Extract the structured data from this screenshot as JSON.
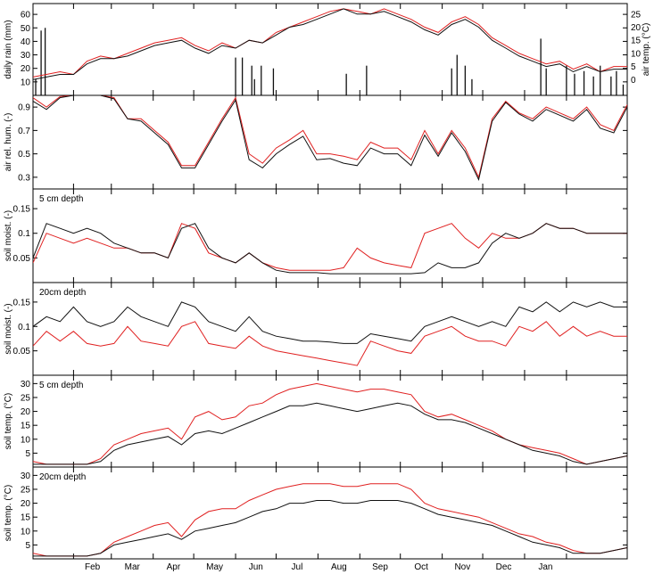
{
  "colors": {
    "series_a": "#e02020",
    "series_b": "#111111",
    "axis": "#000000"
  },
  "months": [
    "Feb",
    "Mar",
    "Apr",
    "May",
    "Jun",
    "Jul",
    "Aug",
    "Sep",
    "Oct",
    "Nov",
    "Dec",
    "Jan"
  ],
  "chart_data": [
    {
      "type": "line",
      "panel": "rain-temp",
      "ylabel": "daily rain (mm)",
      "ylabel_right": "air temp. (°C)",
      "annotation": "",
      "ylim": [
        0,
        68
      ],
      "yticks": [
        10,
        20,
        30,
        40,
        50,
        60
      ],
      "ylim_right": [
        -6,
        29
      ],
      "yticks_right": [
        0,
        5,
        10,
        15,
        20,
        25
      ],
      "rain_bars": [
        [
          2,
          12
        ],
        [
          6,
          48
        ],
        [
          9,
          50
        ],
        [
          150,
          28
        ],
        [
          155,
          28
        ],
        [
          162,
          22
        ],
        [
          164,
          12
        ],
        [
          169,
          22
        ],
        [
          178,
          20
        ],
        [
          232,
          16
        ],
        [
          247,
          22
        ],
        [
          310,
          20
        ],
        [
          314,
          30
        ],
        [
          320,
          22
        ],
        [
          325,
          12
        ],
        [
          376,
          42
        ],
        [
          380,
          20
        ],
        [
          395,
          22
        ],
        [
          401,
          16
        ],
        [
          408,
          18
        ],
        [
          415,
          14
        ],
        [
          420,
          22
        ],
        [
          428,
          14
        ],
        [
          432,
          18
        ],
        [
          437,
          8
        ]
      ],
      "air_temp": {
        "x": [
          0,
          10,
          20,
          30,
          40,
          50,
          60,
          70,
          80,
          90,
          100,
          110,
          120,
          130,
          140,
          150,
          160,
          170,
          180,
          190,
          200,
          210,
          220,
          230,
          240,
          250,
          260,
          270,
          280,
          290,
          300,
          310,
          320,
          330,
          340,
          350,
          360,
          370,
          380,
          390,
          400,
          410,
          420,
          430,
          440
        ],
        "a": [
          1,
          2,
          3,
          2,
          7,
          9,
          8,
          10,
          12,
          14,
          15,
          16,
          13,
          11,
          14,
          12,
          15,
          14,
          18,
          20,
          22,
          24,
          26,
          27,
          26,
          25,
          27,
          25,
          23,
          20,
          18,
          22,
          24,
          21,
          16,
          13,
          10,
          8,
          6,
          7,
          4,
          6,
          3,
          5,
          5
        ],
        "b": [
          0,
          1,
          2,
          2,
          6,
          8,
          8,
          9,
          11,
          13,
          14,
          15,
          12,
          10,
          13,
          12,
          15,
          14,
          17,
          20,
          21,
          23,
          25,
          27,
          25,
          25,
          26,
          24,
          22,
          19,
          17,
          21,
          23,
          20,
          15,
          12,
          9,
          7,
          5,
          6,
          3,
          5,
          3,
          4,
          4
        ]
      }
    },
    {
      "type": "line",
      "panel": "air-humidity",
      "ylabel": "air rel. hum. (-)",
      "annotation": "",
      "ylim": [
        0.2,
        1.0
      ],
      "yticks": [
        0.3,
        0.5,
        0.7,
        0.9
      ],
      "x": [
        0,
        10,
        20,
        30,
        40,
        50,
        60,
        70,
        80,
        90,
        100,
        110,
        120,
        130,
        140,
        150,
        160,
        170,
        180,
        190,
        200,
        210,
        220,
        230,
        240,
        250,
        260,
        270,
        280,
        290,
        300,
        310,
        320,
        330,
        340,
        350,
        360,
        370,
        380,
        390,
        400,
        410,
        420,
        430,
        440
      ],
      "a": [
        0.98,
        0.9,
        0.99,
        1.0,
        1.0,
        1.0,
        0.98,
        0.8,
        0.8,
        0.7,
        0.6,
        0.4,
        0.4,
        0.6,
        0.8,
        0.98,
        0.5,
        0.42,
        0.55,
        0.62,
        0.7,
        0.5,
        0.5,
        0.48,
        0.45,
        0.6,
        0.55,
        0.55,
        0.45,
        0.7,
        0.5,
        0.7,
        0.55,
        0.3,
        0.8,
        0.95,
        0.85,
        0.8,
        0.9,
        0.85,
        0.8,
        0.9,
        0.75,
        0.7,
        0.92
      ],
      "b": [
        0.95,
        0.88,
        0.98,
        1.0,
        1.0,
        1.0,
        0.97,
        0.8,
        0.78,
        0.68,
        0.58,
        0.38,
        0.38,
        0.58,
        0.78,
        0.96,
        0.45,
        0.38,
        0.5,
        0.58,
        0.65,
        0.45,
        0.46,
        0.42,
        0.4,
        0.55,
        0.5,
        0.5,
        0.4,
        0.66,
        0.48,
        0.68,
        0.52,
        0.28,
        0.78,
        0.94,
        0.84,
        0.78,
        0.88,
        0.83,
        0.78,
        0.88,
        0.72,
        0.68,
        0.9
      ]
    },
    {
      "type": "line",
      "panel": "soil-moist-5",
      "ylabel": "soil moist. (-)",
      "annotation": "5 cm depth",
      "ylim": [
        0.0,
        0.19
      ],
      "yticks": [
        0.05,
        0.1,
        0.15
      ],
      "x": [
        0,
        10,
        20,
        30,
        40,
        50,
        60,
        70,
        80,
        90,
        100,
        110,
        120,
        130,
        140,
        150,
        160,
        170,
        180,
        190,
        200,
        210,
        220,
        230,
        240,
        250,
        260,
        270,
        280,
        290,
        300,
        310,
        320,
        330,
        340,
        350,
        360,
        370,
        380,
        390,
        400,
        410,
        420,
        430,
        440
      ],
      "a": [
        0.04,
        0.1,
        0.09,
        0.08,
        0.09,
        0.08,
        0.07,
        0.07,
        0.06,
        0.06,
        0.05,
        0.12,
        0.11,
        0.06,
        0.05,
        0.04,
        0.06,
        0.04,
        0.03,
        0.025,
        0.025,
        0.025,
        0.025,
        0.03,
        0.07,
        0.05,
        0.04,
        0.035,
        0.03,
        0.1,
        0.11,
        0.12,
        0.09,
        0.07,
        0.1,
        0.09,
        0.09,
        0.1,
        0.12,
        0.11,
        0.11,
        0.1,
        0.1,
        0.1,
        0.1
      ],
      "b": [
        0.05,
        0.12,
        0.11,
        0.1,
        0.11,
        0.1,
        0.08,
        0.07,
        0.06,
        0.06,
        0.05,
        0.11,
        0.12,
        0.07,
        0.05,
        0.04,
        0.06,
        0.04,
        0.025,
        0.02,
        0.02,
        0.02,
        0.018,
        0.018,
        0.018,
        0.018,
        0.018,
        0.018,
        0.018,
        0.02,
        0.04,
        0.03,
        0.03,
        0.04,
        0.08,
        0.1,
        0.09,
        0.1,
        0.12,
        0.11,
        0.11,
        0.1,
        0.1,
        0.1,
        0.1
      ]
    },
    {
      "type": "line",
      "panel": "soil-moist-20",
      "ylabel": "soil moist. (-)",
      "annotation": "20cm depth",
      "ylim": [
        0.0,
        0.19
      ],
      "yticks": [
        0.05,
        0.1,
        0.15
      ],
      "x": [
        0,
        10,
        20,
        30,
        40,
        50,
        60,
        70,
        80,
        90,
        100,
        110,
        120,
        130,
        140,
        150,
        160,
        170,
        180,
        190,
        200,
        210,
        220,
        230,
        240,
        250,
        260,
        270,
        280,
        290,
        300,
        310,
        320,
        330,
        340,
        350,
        360,
        370,
        380,
        390,
        400,
        410,
        420,
        430,
        440
      ],
      "a": [
        0.06,
        0.09,
        0.07,
        0.09,
        0.065,
        0.06,
        0.065,
        0.1,
        0.07,
        0.065,
        0.06,
        0.1,
        0.11,
        0.065,
        0.06,
        0.055,
        0.08,
        0.06,
        0.05,
        0.045,
        0.04,
        0.035,
        0.03,
        0.025,
        0.02,
        0.07,
        0.06,
        0.05,
        0.045,
        0.08,
        0.09,
        0.1,
        0.08,
        0.07,
        0.07,
        0.06,
        0.1,
        0.09,
        0.11,
        0.08,
        0.1,
        0.08,
        0.09,
        0.08,
        0.08
      ],
      "b": [
        0.1,
        0.12,
        0.11,
        0.14,
        0.11,
        0.1,
        0.11,
        0.14,
        0.12,
        0.11,
        0.1,
        0.15,
        0.14,
        0.11,
        0.1,
        0.09,
        0.12,
        0.09,
        0.08,
        0.075,
        0.07,
        0.07,
        0.068,
        0.065,
        0.065,
        0.085,
        0.08,
        0.075,
        0.07,
        0.1,
        0.11,
        0.12,
        0.11,
        0.1,
        0.11,
        0.1,
        0.14,
        0.13,
        0.15,
        0.13,
        0.15,
        0.14,
        0.15,
        0.14,
        0.14
      ]
    },
    {
      "type": "line",
      "panel": "soil-temp-5",
      "ylabel": "soil temp. (°C)",
      "annotation": "5 cm depth",
      "ylim": [
        0,
        33
      ],
      "yticks": [
        5,
        10,
        15,
        20,
        25,
        30
      ],
      "x": [
        0,
        10,
        20,
        30,
        40,
        50,
        60,
        70,
        80,
        90,
        100,
        110,
        120,
        130,
        140,
        150,
        160,
        170,
        180,
        190,
        200,
        210,
        220,
        230,
        240,
        250,
        260,
        270,
        280,
        290,
        300,
        310,
        320,
        330,
        340,
        350,
        360,
        370,
        380,
        390,
        400,
        410,
        420,
        430,
        440
      ],
      "a": [
        2,
        1,
        1,
        1,
        1,
        3,
        8,
        10,
        12,
        13,
        14,
        10,
        18,
        20,
        17,
        18,
        22,
        23,
        26,
        28,
        29,
        30,
        29,
        28,
        27,
        28,
        28,
        27,
        26,
        20,
        18,
        19,
        17,
        15,
        13,
        10,
        8,
        7,
        6,
        5,
        3,
        1,
        2,
        3,
        4
      ],
      "b": [
        1,
        1,
        1,
        1,
        1,
        2,
        6,
        8,
        9,
        10,
        11,
        8,
        12,
        13,
        12,
        14,
        16,
        18,
        20,
        22,
        22,
        23,
        22,
        21,
        20,
        21,
        22,
        23,
        22,
        19,
        17,
        17,
        16,
        14,
        12,
        10,
        8,
        6,
        5,
        4,
        2,
        1,
        2,
        3,
        4
      ]
    },
    {
      "type": "line",
      "panel": "soil-temp-20",
      "ylabel": "soil temp. (°C)",
      "annotation": "20cm depth",
      "ylim": [
        0,
        33
      ],
      "yticks": [
        5,
        10,
        15,
        20,
        25,
        30
      ],
      "x": [
        0,
        10,
        20,
        30,
        40,
        50,
        60,
        70,
        80,
        90,
        100,
        110,
        120,
        130,
        140,
        150,
        160,
        170,
        180,
        190,
        200,
        210,
        220,
        230,
        240,
        250,
        260,
        270,
        280,
        290,
        300,
        310,
        320,
        330,
        340,
        350,
        360,
        370,
        380,
        390,
        400,
        410,
        420,
        430,
        440
      ],
      "a": [
        2,
        1,
        1,
        1,
        1,
        2,
        6,
        8,
        10,
        12,
        13,
        8,
        14,
        17,
        18,
        18,
        21,
        23,
        25,
        26,
        27,
        27,
        27,
        26,
        26,
        27,
        27,
        27,
        25,
        20,
        18,
        17,
        16,
        15,
        13,
        11,
        9,
        8,
        6,
        5,
        3,
        2,
        2,
        3,
        4
      ],
      "b": [
        1,
        1,
        1,
        1,
        1,
        2,
        5,
        6,
        7,
        8,
        9,
        7,
        10,
        11,
        12,
        13,
        15,
        17,
        18,
        20,
        20,
        21,
        21,
        20,
        20,
        21,
        21,
        21,
        20,
        18,
        16,
        15,
        14,
        13,
        12,
        10,
        8,
        6,
        5,
        4,
        2,
        2,
        2,
        3,
        4
      ]
    }
  ]
}
